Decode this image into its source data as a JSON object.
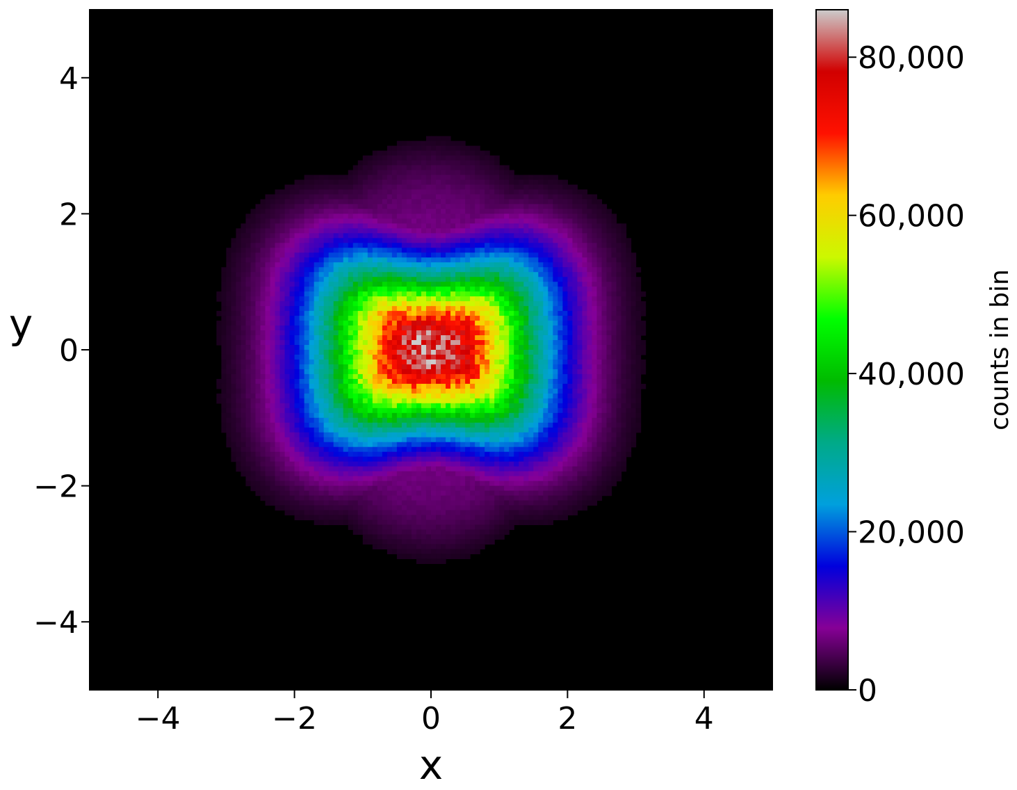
{
  "chart_data": {
    "type": "heatmap",
    "title": "",
    "xlabel": "x",
    "ylabel": "y",
    "xlim": [
      -5,
      5
    ],
    "ylim": [
      -5,
      5
    ],
    "x_ticks": [
      -4,
      -2,
      0,
      2,
      4
    ],
    "y_ticks": [
      -4,
      -2,
      0,
      2,
      4
    ],
    "x_tick_labels": [
      "−4",
      "−2",
      "0",
      "2",
      "4"
    ],
    "y_tick_labels": [
      "−4",
      "−2",
      "0",
      "2",
      "4"
    ],
    "grid": false,
    "background_color": "#000000",
    "colormap": "nipy_spectral",
    "colorbar": {
      "label": "counts in bin",
      "range": [
        0,
        86000
      ],
      "ticks": [
        0,
        20000,
        40000,
        60000,
        80000
      ],
      "tick_labels": [
        "0",
        "20,000",
        "40,000",
        "60,000",
        "80,000"
      ],
      "colors": [
        "#000000",
        "#860096",
        "#0000dd",
        "#00a0dd",
        "#00aa88",
        "#00bb00",
        "#00ff00",
        "#ccf800",
        "#ffcc00",
        "#ff1100",
        "#d10000",
        "#cccccc"
      ]
    },
    "distribution": {
      "center": [
        0,
        0
      ],
      "peak_count": 84000,
      "approx_level_extent": [
        {
          "count": 10000,
          "x_half_width": 2.0,
          "y_half_height": 2.4
        },
        {
          "count": 20000,
          "x_half_width": 1.6,
          "y_half_height": 1.6
        },
        {
          "count": 40000,
          "x_half_width": 1.2,
          "y_half_height": 1.0
        },
        {
          "count": 60000,
          "x_half_width": 0.9,
          "y_half_height": 0.7
        },
        {
          "count": 75000,
          "x_half_width": 0.7,
          "y_half_height": 0.5
        }
      ]
    }
  }
}
